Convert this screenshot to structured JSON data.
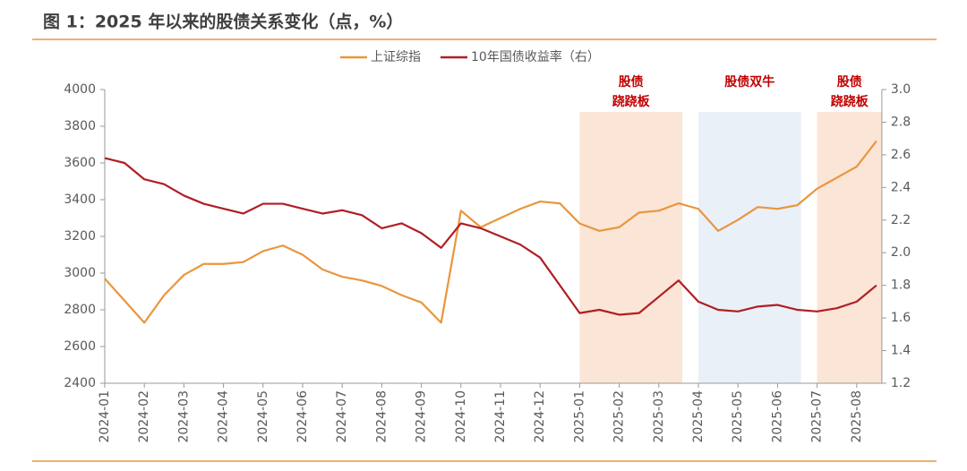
{
  "chart_data": {
    "type": "line",
    "title": "图 1：2025 年以来的股债关系变化（点，%）",
    "x": [
      "2024-01",
      null,
      "2024-02",
      null,
      "2024-03",
      null,
      "2024-04",
      null,
      "2024-05",
      null,
      "2024-06",
      null,
      "2024-07",
      null,
      "2024-08",
      null,
      "2024-09",
      null,
      "2024-10",
      null,
      "2024-11",
      null,
      "2024-12",
      null,
      "2025-01",
      null,
      "2025-02",
      null,
      "2025-03",
      null,
      "2025-04",
      null,
      "2025-05",
      null,
      "2025-06",
      null,
      "2025-07",
      null,
      "2025-08",
      null
    ],
    "series": [
      {
        "name": "上证综指",
        "color": "#e9963e",
        "axis": "y",
        "values": [
          2970,
          2850,
          2730,
          2880,
          2990,
          3050,
          3050,
          3060,
          3120,
          3150,
          3100,
          3020,
          2980,
          2960,
          2930,
          2880,
          2840,
          2730,
          3340,
          3250,
          3300,
          3350,
          3390,
          3380,
          3270,
          3230,
          3250,
          3330,
          3340,
          3380,
          3350,
          3230,
          3290,
          3360,
          3350,
          3370,
          3460,
          3520,
          3580,
          3720
        ]
      },
      {
        "name": "10年国债收益率（右）",
        "color": "#b01e23",
        "axis": "y2",
        "values": [
          2.58,
          2.55,
          2.45,
          2.42,
          2.35,
          2.3,
          2.27,
          2.24,
          2.3,
          2.3,
          2.27,
          2.24,
          2.26,
          2.23,
          2.15,
          2.18,
          2.12,
          2.03,
          2.18,
          2.15,
          2.1,
          2.05,
          1.97,
          1.8,
          1.63,
          1.65,
          1.62,
          1.63,
          1.73,
          1.83,
          1.7,
          1.65,
          1.64,
          1.67,
          1.68,
          1.65,
          1.64,
          1.66,
          1.7,
          1.8
        ]
      }
    ],
    "ylim": [
      2400,
      4000
    ],
    "yticks": [
      2400,
      2600,
      2800,
      3000,
      3200,
      3400,
      3600,
      3800,
      4000
    ],
    "y2lim": [
      1.2,
      3.0
    ],
    "y2ticks": [
      1.2,
      1.4,
      1.6,
      1.8,
      {
        "value": 2,
        "label": "2.0"
      },
      2.2,
      2.4,
      2.6,
      2.8,
      {
        "value": 3,
        "label": "3.0"
      }
    ],
    "bands": [
      {
        "from": "2025-01",
        "to": "2025-04",
        "color": "#fbe5d6",
        "label": [
          "股债",
          "跷跷板"
        ]
      },
      {
        "from": "2025-04",
        "to": "2025-07",
        "color": "#eaf0f8",
        "label": [
          "股债双牛"
        ]
      },
      {
        "from": "2025-07",
        "to": "2025-08",
        "color": "#fbe5d6",
        "label": [
          "股债",
          "跷跷板"
        ]
      }
    ],
    "legend": "top"
  }
}
